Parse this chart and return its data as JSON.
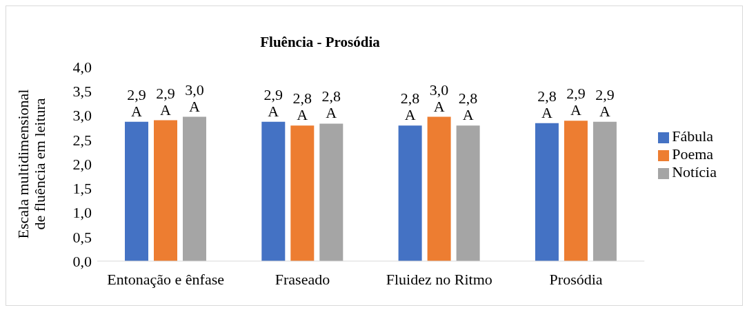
{
  "chart_data": {
    "type": "bar",
    "title": "Fluência - Prosódia",
    "ylabel": "Escala multidimensional de fluência em leitura",
    "categories": [
      "Entonação e ênfase",
      "Fraseado",
      "Fluidez no Ritmo",
      "Prosódia"
    ],
    "series": [
      {
        "name": "Fábula",
        "color": "#4472c4",
        "values": [
          2.87,
          2.87,
          2.79,
          2.84
        ],
        "value_labels": [
          "2,9\nA",
          "2,9\nA",
          "2,8\nA",
          "2,8\nA"
        ]
      },
      {
        "name": "Poema",
        "color": "#ed7d31",
        "values": [
          2.9,
          2.79,
          2.97,
          2.89
        ],
        "value_labels": [
          "2,9\nA",
          "2,8\nA",
          "3,0\nA",
          "2,9\nA"
        ]
      },
      {
        "name": "Notícia",
        "color": "#a5a5a5",
        "values": [
          2.97,
          2.83,
          2.79,
          2.87
        ],
        "value_labels": [
          "3,0\nA",
          "2,8\nA",
          "2,8\nA",
          "2,9\nA"
        ]
      }
    ],
    "ylim": [
      0,
      4
    ],
    "yticks": [
      {
        "value": 0,
        "label": "0,0"
      },
      {
        "value": 0.5,
        "label": "0,5"
      },
      {
        "value": 1,
        "label": "1,0"
      },
      {
        "value": 1.5,
        "label": "1,5"
      },
      {
        "value": 2,
        "label": "2,0"
      },
      {
        "value": 2.5,
        "label": "2,5"
      },
      {
        "value": 3,
        "label": "3,0"
      },
      {
        "value": 3.5,
        "label": "3,5"
      },
      {
        "value": 4,
        "label": "4,0"
      }
    ],
    "grid": false,
    "legend": "right"
  }
}
